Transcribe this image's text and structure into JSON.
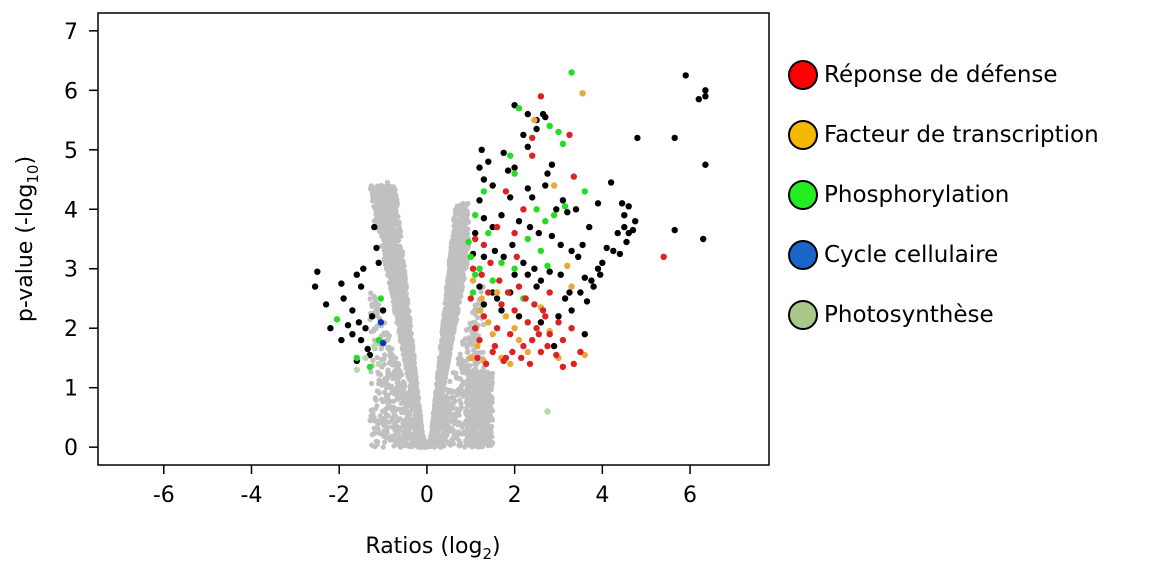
{
  "chart_data": {
    "type": "scatter",
    "title": "",
    "xlabel": "Ratios (log",
    "xlabel_sub": "2",
    "xlabel_end": ")",
    "ylabel": "p-value (-log",
    "ylabel_sub": "10",
    "ylabel_end": ")",
    "xlim": [
      -7.5,
      7.8
    ],
    "ylim": [
      -0.3,
      7.3
    ],
    "xticks": [
      "-6",
      "-4",
      "-2",
      "0",
      "2",
      "4",
      "6"
    ],
    "xtick_values": [
      -6,
      -4,
      -2,
      0,
      2,
      4,
      6
    ],
    "yticks": [
      "0",
      "1",
      "2",
      "3",
      "4",
      "5",
      "6",
      "7"
    ],
    "ytick_values": [
      0,
      1,
      2,
      3,
      4,
      5,
      6,
      7
    ],
    "grid": false,
    "legend_position": "right",
    "background_series": {
      "name": "",
      "color": "#c0c0c0",
      "description_points": [
        [
          -1.2,
          3.8
        ],
        [
          -0.9,
          4.45
        ],
        [
          0,
          0
        ],
        [
          0.8,
          4.0
        ],
        [
          1.2,
          1.2
        ]
      ]
    },
    "series": [
      {
        "name": "Réponse de défense",
        "color": "#ff0000",
        "marker_color": "#dd2222",
        "points": [
          [
            1.0,
            2.5
          ],
          [
            1.1,
            2.0
          ],
          [
            1.2,
            1.8
          ],
          [
            1.3,
            2.2
          ],
          [
            1.4,
            2.6
          ],
          [
            1.5,
            1.6
          ],
          [
            1.6,
            2.0
          ],
          [
            1.7,
            2.4
          ],
          [
            1.8,
            1.5
          ],
          [
            1.9,
            1.9
          ],
          [
            2.0,
            2.3
          ],
          [
            2.1,
            2.7
          ],
          [
            2.2,
            1.7
          ],
          [
            2.3,
            2.1
          ],
          [
            2.4,
            1.8
          ],
          [
            2.5,
            2.0
          ],
          [
            2.6,
            1.6
          ],
          [
            2.7,
            2.2
          ],
          [
            2.8,
            1.9
          ],
          [
            3.0,
            2.1
          ],
          [
            1.05,
            3.0
          ],
          [
            1.25,
            2.9
          ],
          [
            1.45,
            3.1
          ],
          [
            1.65,
            2.8
          ],
          [
            1.85,
            2.6
          ],
          [
            2.05,
            3.2
          ],
          [
            2.25,
            2.5
          ],
          [
            2.45,
            2.4
          ],
          [
            2.65,
            2.3
          ],
          [
            1.15,
            1.5
          ],
          [
            1.35,
            1.4
          ],
          [
            1.55,
            1.7
          ],
          [
            1.75,
            1.45
          ],
          [
            1.95,
            1.6
          ],
          [
            2.15,
            1.5
          ],
          [
            2.35,
            1.4
          ],
          [
            2.55,
            1.9
          ],
          [
            2.75,
            1.7
          ],
          [
            2.95,
            1.55
          ],
          [
            3.1,
            1.8
          ],
          [
            3.3,
            2.0
          ],
          [
            3.5,
            1.6
          ],
          [
            1.1,
            3.5
          ],
          [
            1.3,
            3.4
          ],
          [
            2.2,
            4.0
          ],
          [
            2.4,
            5.2
          ],
          [
            2.6,
            5.9
          ],
          [
            3.25,
            5.25
          ],
          [
            3.35,
            4.55
          ],
          [
            5.4,
            3.2
          ],
          [
            2.8,
            2.6
          ],
          [
            2.0,
            3.6
          ],
          [
            1.6,
            3.7
          ],
          [
            1.8,
            4.3
          ],
          [
            3.1,
            1.35
          ],
          [
            3.35,
            1.4
          ],
          [
            2.4,
            4.9
          ]
        ]
      },
      {
        "name": "Facteur de transcription",
        "color": "#f5b800",
        "marker_color": "#e8a93a",
        "points": [
          [
            1.0,
            1.5
          ],
          [
            1.15,
            1.7
          ],
          [
            1.3,
            1.45
          ],
          [
            1.5,
            1.9
          ],
          [
            1.7,
            1.5
          ],
          [
            1.9,
            1.4
          ],
          [
            2.1,
            1.8
          ],
          [
            2.3,
            1.6
          ],
          [
            1.2,
            2.3
          ],
          [
            1.4,
            2.1
          ],
          [
            1.6,
            2.6
          ],
          [
            1.8,
            2.2
          ],
          [
            2.0,
            2.0
          ],
          [
            2.45,
            5.5
          ],
          [
            2.9,
            4.4
          ],
          [
            3.2,
            3.05
          ],
          [
            3.3,
            2.7
          ],
          [
            3.55,
            5.95
          ],
          [
            3.6,
            1.55
          ],
          [
            1.05,
            2.8
          ],
          [
            1.25,
            2.5
          ],
          [
            2.6,
            2.35
          ],
          [
            2.8,
            1.95
          ],
          [
            3.0,
            1.5
          ]
        ]
      },
      {
        "name": "Phosphorylation",
        "color": "#22ee22",
        "marker_color": "#22dd22",
        "points": [
          [
            3.3,
            6.3
          ],
          [
            2.1,
            5.7
          ],
          [
            2.8,
            5.4
          ],
          [
            3.0,
            5.3
          ],
          [
            3.1,
            5.1
          ],
          [
            2.0,
            4.6
          ],
          [
            1.3,
            4.3
          ],
          [
            1.1,
            3.9
          ],
          [
            2.5,
            4.0
          ],
          [
            2.9,
            3.9
          ],
          [
            3.15,
            4.05
          ],
          [
            3.6,
            4.3
          ],
          [
            1.0,
            3.2
          ],
          [
            1.2,
            3.0
          ],
          [
            1.4,
            3.6
          ],
          [
            2.3,
            3.5
          ],
          [
            2.6,
            3.3
          ],
          [
            2.7,
            3.8
          ],
          [
            1.1,
            2.9
          ],
          [
            0.95,
            3.45
          ],
          [
            -2.05,
            2.15
          ],
          [
            -1.6,
            1.5
          ],
          [
            -1.1,
            1.8
          ],
          [
            -1.05,
            2.5
          ],
          [
            -1.3,
            1.35
          ],
          [
            1.5,
            2.8
          ],
          [
            1.7,
            3.1
          ],
          [
            2.0,
            3.0
          ],
          [
            2.2,
            2.5
          ],
          [
            1.05,
            2.6
          ],
          [
            1.9,
            4.9
          ],
          [
            2.75,
            3.05
          ]
        ]
      },
      {
        "name": "Cycle cellulaire",
        "color": "#1a66c8",
        "marker_color": "#1133bb",
        "points": [
          [
            -1.0,
            1.75
          ],
          [
            -1.05,
            2.1
          ]
        ]
      },
      {
        "name": "Photosynthèse",
        "color": "#a8c88a",
        "marker_color": "#b8d8a8",
        "points": [
          [
            -1.6,
            1.3
          ],
          [
            -1.4,
            1.5
          ],
          [
            -1.2,
            1.7
          ],
          [
            -1.1,
            1.4
          ],
          [
            2.75,
            0.6
          ]
        ]
      },
      {
        "name": "",
        "color": "#000000",
        "marker_color": "#000000",
        "points": [
          [
            5.9,
            6.25
          ],
          [
            6.35,
            6.0
          ],
          [
            6.2,
            5.85
          ],
          [
            6.35,
            5.9
          ],
          [
            5.65,
            5.2
          ],
          [
            4.8,
            5.2
          ],
          [
            6.35,
            4.75
          ],
          [
            6.3,
            3.5
          ],
          [
            5.65,
            3.65
          ],
          [
            4.75,
            3.8
          ],
          [
            4.7,
            3.65
          ],
          [
            4.2,
            4.45
          ],
          [
            4.45,
            4.1
          ],
          [
            4.35,
            3.6
          ],
          [
            4.25,
            3.3
          ],
          [
            4.0,
            3.1
          ],
          [
            3.95,
            2.9
          ],
          [
            3.8,
            2.7
          ],
          [
            3.65,
            2.45
          ],
          [
            3.5,
            2.6
          ],
          [
            3.6,
            2.85
          ],
          [
            3.45,
            3.2
          ],
          [
            3.55,
            3.4
          ],
          [
            4.5,
            3.9
          ],
          [
            4.6,
            3.6
          ],
          [
            4.55,
            3.45
          ],
          [
            4.4,
            3.25
          ],
          [
            4.1,
            3.35
          ],
          [
            3.9,
            3.0
          ],
          [
            3.75,
            2.8
          ],
          [
            3.6,
            1.9
          ],
          [
            3.7,
            3.7
          ],
          [
            3.9,
            4.1
          ],
          [
            4.6,
            4.05
          ],
          [
            4.5,
            3.7
          ],
          [
            2.3,
            5.6
          ],
          [
            2.0,
            5.75
          ],
          [
            2.5,
            5.35
          ],
          [
            2.2,
            5.25
          ],
          [
            2.3,
            5.05
          ],
          [
            2.5,
            5.5
          ],
          [
            2.65,
            5.6
          ],
          [
            2.7,
            5.55
          ],
          [
            1.25,
            5.0
          ],
          [
            1.4,
            4.8
          ],
          [
            1.2,
            4.7
          ],
          [
            1.3,
            4.5
          ],
          [
            1.2,
            4.15
          ],
          [
            1.5,
            4.4
          ],
          [
            1.85,
            4.65
          ],
          [
            2.0,
            4.7
          ],
          [
            1.75,
            4.95
          ],
          [
            1.9,
            4.2
          ],
          [
            2.3,
            4.35
          ],
          [
            2.4,
            4.2
          ],
          [
            2.7,
            4.4
          ],
          [
            2.75,
            4.6
          ],
          [
            2.85,
            4.75
          ],
          [
            2.95,
            4.0
          ],
          [
            3.1,
            4.15
          ],
          [
            3.2,
            3.95
          ],
          [
            3.4,
            4.0
          ],
          [
            3.05,
            3.4
          ],
          [
            3.3,
            3.3
          ],
          [
            2.85,
            3.55
          ],
          [
            2.55,
            3.6
          ],
          [
            2.35,
            3.7
          ],
          [
            2.1,
            3.8
          ],
          [
            1.7,
            3.9
          ],
          [
            1.5,
            3.7
          ],
          [
            1.3,
            3.85
          ],
          [
            1.1,
            3.6
          ],
          [
            1.05,
            3.25
          ],
          [
            1.3,
            3.2
          ],
          [
            1.55,
            3.3
          ],
          [
            1.75,
            3.2
          ],
          [
            1.95,
            3.4
          ],
          [
            2.2,
            3.1
          ],
          [
            2.45,
            3.0
          ],
          [
            2.6,
            2.8
          ],
          [
            2.8,
            2.95
          ],
          [
            3.05,
            2.9
          ],
          [
            3.25,
            2.6
          ],
          [
            3.0,
            2.2
          ],
          [
            2.9,
            1.7
          ],
          [
            3.3,
            2.3
          ],
          [
            1.3,
            2.4
          ],
          [
            1.5,
            2.6
          ],
          [
            1.7,
            2.3
          ],
          [
            1.9,
            2.6
          ],
          [
            2.1,
            2.2
          ],
          [
            2.3,
            2.9
          ],
          [
            2.5,
            2.7
          ],
          [
            1.2,
            2.7
          ],
          [
            1.6,
            2.5
          ],
          [
            2.0,
            2.9
          ],
          [
            2.6,
            2.1
          ],
          [
            3.15,
            2.5
          ],
          [
            -2.5,
            2.95
          ],
          [
            -2.55,
            2.7
          ],
          [
            -2.3,
            2.4
          ],
          [
            -2.2,
            2.0
          ],
          [
            -1.95,
            2.75
          ],
          [
            -1.9,
            2.5
          ],
          [
            -1.7,
            2.3
          ],
          [
            -1.6,
            2.9
          ],
          [
            -1.5,
            2.7
          ],
          [
            -1.55,
            2.1
          ],
          [
            -1.4,
            2.0
          ],
          [
            -1.35,
            1.65
          ],
          [
            -1.5,
            1.8
          ],
          [
            -1.7,
            1.9
          ],
          [
            -1.8,
            2.05
          ],
          [
            -1.95,
            1.8
          ],
          [
            -1.25,
            2.2
          ],
          [
            -1.45,
            3.0
          ],
          [
            -1.15,
            3.35
          ],
          [
            -1.1,
            3.1
          ],
          [
            -1.3,
            1.55
          ],
          [
            -1.0,
            2.3
          ],
          [
            -1.6,
            1.45
          ],
          [
            -1.2,
            3.7
          ]
        ]
      }
    ]
  }
}
